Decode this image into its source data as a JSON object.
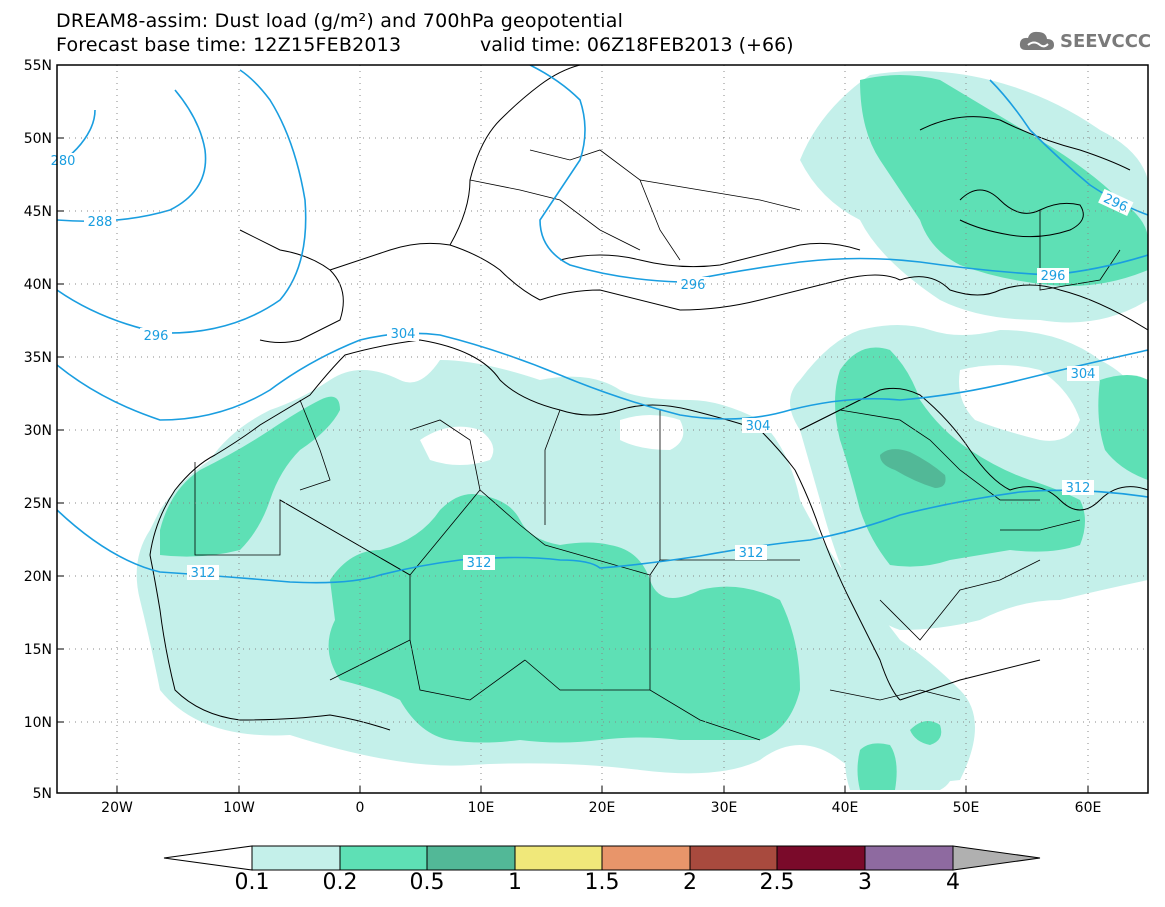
{
  "header": {
    "title": "DREAM8-assim: Dust load (g/m²) and 700hPa geopotential",
    "base_time": "Forecast base time: 12Z15FEB2013",
    "valid_time": "valid time: 06Z18FEB2013 (+66)"
  },
  "logo": {
    "text": "SEEVCCC",
    "icon": "cloud-icon"
  },
  "axes": {
    "lat_labels": [
      "55N",
      "50N",
      "45N",
      "40N",
      "35N",
      "30N",
      "25N",
      "20N",
      "15N",
      "10N",
      "5N"
    ],
    "lon_labels": [
      "20W",
      "10W",
      "0",
      "10E",
      "20E",
      "30E",
      "40E",
      "50E",
      "60E"
    ]
  },
  "contours": {
    "labels": [
      "280",
      "288",
      "296",
      "304",
      "312",
      "296",
      "296",
      "296",
      "304",
      "312",
      "312"
    ]
  },
  "colorbar": {
    "labels": [
      "0.1",
      "0.2",
      "0.5",
      "1",
      "1.5",
      "2",
      "2.5",
      "3",
      "4"
    ],
    "colors": [
      "#ffffff",
      "#c4f0ea",
      "#5ee0b5",
      "#52b897",
      "#f0e87a",
      "#e8956a",
      "#a84a3e",
      "#7a0a2a",
      "#8e6aa0",
      "#b0b0b0"
    ]
  },
  "map_colors": {
    "light_dust": "#c4f0ea",
    "medium_dust": "#5ee0b5",
    "heavy_dust": "#52b897",
    "contour_line": "#1a9ee0"
  }
}
